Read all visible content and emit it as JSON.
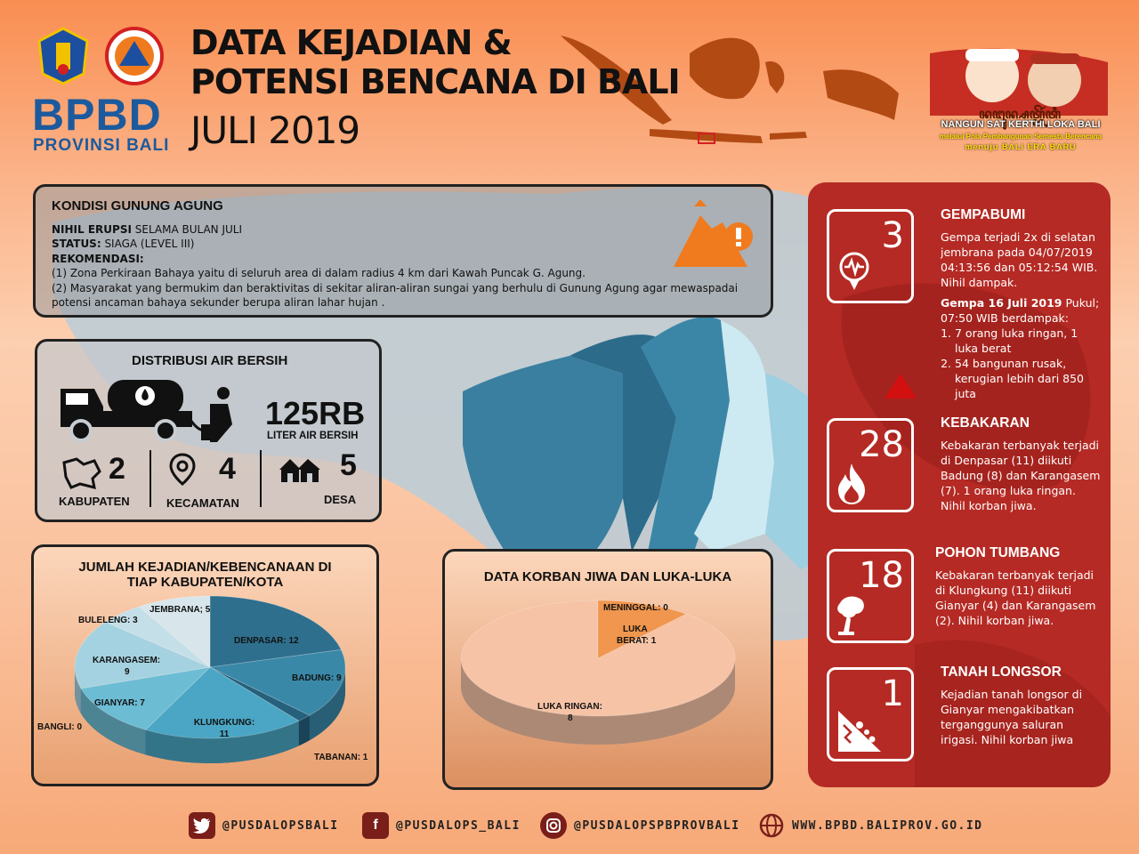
{
  "header": {
    "org_name": "BPBD",
    "org_sub": "PROVINSI BALI",
    "title_line1": "DATA KEJADIAN &",
    "title_line2": "POTENSI BENCANA DI BALI",
    "month": "JULI 2019",
    "gov_script": "ꦤꦔꦸꦤ꧀ꦱꦠ꧀ꦏꦼꦂꦠꦶ",
    "gov_slogan1": "NANGUN SAT KERTHI LOKA BALI",
    "gov_slogan2": "melalui Pola Pembangunan Semesta Berencana",
    "gov_slogan3": "menuju BALI ERA BARU"
  },
  "kondisi": {
    "title": "KONDISI GUNUNG AGUNG",
    "line1_bold": "NIHIL ERUPSI",
    "line1_rest": " SELAMA BULAN JULI",
    "line2_bold": "STATUS:",
    "line2_rest": " SIAGA (LEVEL III)",
    "line3_bold": "REKOMENDASI:",
    "rec1": "(1)  Zona Perkiraan Bahaya yaitu di seluruh area di dalam radius 4 km dari Kawah Puncak G. Agung.",
    "rec2": "(2) Masyarakat yang bermukim dan beraktivitas di sekitar aliran-aliran sungai yang berhulu di Gunung Agung agar mewaspadai potensi ancaman bahaya sekunder berupa aliran lahar hujan ."
  },
  "air": {
    "title": "DISTRIBUSI AIR BERSIH",
    "amount": "125RB",
    "amount_label": "LITER AIR BERSIH",
    "kab_value": "2",
    "kab_label": "KABUPATEN",
    "kec_value": "4",
    "kec_label": "KECAMATAN",
    "desa_value": "5",
    "desa_label": "DESA"
  },
  "kejadian": {
    "title_line1": "JUMLAH KEJADIAN/KEBENCANAAN DI",
    "title_line2": "TIAP KABUPATEN/KOTA"
  },
  "korban": {
    "title": "DATA KORBAN JIWA DAN LUKA-LUKA"
  },
  "chart_data": [
    {
      "type": "pie",
      "title": "JUMLAH KEJADIAN/KEBENCANAAN DI TIAP KABUPATEN/KOTA",
      "categories": [
        "DENPASAR",
        "BADUNG",
        "TABANAN",
        "KLUNGKUNG",
        "BANGLI",
        "GIANYAR",
        "KARANGASEM",
        "BULELENG",
        "JEMBRANA"
      ],
      "values": [
        12,
        9,
        1,
        11,
        0,
        7,
        9,
        3,
        5
      ],
      "labels": [
        "DENPASAR: 12",
        "BADUNG: 9",
        "TABANAN: 1",
        "KLUNGKUNG:",
        "BANGLI: 0",
        "GIANYAR: 7",
        "KARANGASEM:",
        "BULELENG: 3",
        "JEMBRANA; 5"
      ],
      "labels2": [
        "",
        "",
        "",
        "11",
        "",
        "",
        "9",
        "",
        ""
      ],
      "colors": [
        "#2e6f8e",
        "#3a88a8",
        "#25607c",
        "#4aa6c4",
        "#2a6a88",
        "#6cbcd4",
        "#a5d2e0",
        "#c4dfe8",
        "#d8e6ec"
      ]
    },
    {
      "type": "pie",
      "title": "DATA KORBAN JIWA DAN LUKA-LUKA",
      "categories": [
        "LUKA RINGAN",
        "LUKA BERAT",
        "MENINGGAL"
      ],
      "values": [
        8,
        1,
        0
      ],
      "labels": [
        "LUKA RINGAN:",
        "LUKA",
        "MENINGGAL: 0"
      ],
      "labels2": [
        "8",
        "BERAT: 1",
        ""
      ],
      "colors": [
        "#f6c3a6",
        "#f0964e",
        "#d0d0d0"
      ]
    }
  ],
  "events": [
    {
      "count": "3",
      "title": "GEMPABUMI",
      "text1": "Gempa terjadi 2x di selatan jembrana pada 04/07/2019 04:13:56 dan 05:12:54 WIB. Nihil dampak.",
      "bold2": "Gempa 16 Juli 2019",
      "text2": " Pukul; 07:50 WIB berdampak:",
      "item1": "7 orang luka ringan, 1 luka berat",
      "item2": "54 bangunan rusak, kerugian lebih dari 850 juta"
    },
    {
      "count": "28",
      "title": "KEBAKARAN",
      "text1": "Kebakaran terbanyak terjadi di Denpasar (11) diikuti Badung (8) dan Karangasem (7). 1 orang luka ringan. Nihil korban jiwa."
    },
    {
      "count": "18",
      "title": "POHON TUMBANG",
      "text1": "Kebakaran terbanyak terjadi di Klungkung (11) diikuti Gianyar (4) dan Karangasem (2). Nihil korban jiwa."
    },
    {
      "count": "1",
      "title": "TANAH LONGSOR",
      "text1": "Kejadian tanah longsor di Gianyar mengakibatkan terganggunya saluran irigasi. Nihil korban jiwa"
    }
  ],
  "footer": {
    "twitter": "@PUSDALOPSBALI",
    "facebook": "@PUSDALOPS_BALI",
    "instagram": "@PUSDALOPSPBPROVBALI",
    "web": "WWW.BPBD.BALIPROV.GO.ID"
  },
  "colors": {
    "brand_blue": "#1c5a9e",
    "red_panel": "#b52a24",
    "orange_icon": "#f07a1e"
  }
}
